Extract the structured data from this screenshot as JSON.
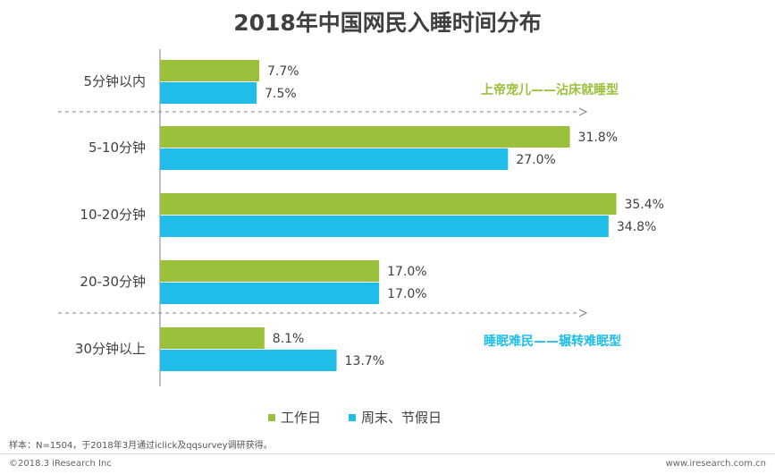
{
  "chart_data": {
    "type": "bar",
    "orientation": "horizontal",
    "title": "2018年中国网民入睡时间分布",
    "categories": [
      "5分钟以内",
      "5-10分钟",
      "10-20分钟",
      "20-30分钟",
      "30分钟以上"
    ],
    "series": [
      {
        "name": "工作日",
        "color": "#9bc13c",
        "values": [
          7.7,
          31.8,
          35.4,
          17.0,
          8.1
        ]
      },
      {
        "name": "周末、节假日",
        "color": "#1fbde8",
        "values": [
          7.5,
          27.0,
          34.8,
          17.0,
          13.7
        ]
      }
    ],
    "value_format": "percent_1dp",
    "xlim": [
      0,
      36
    ],
    "annotations": [
      {
        "text": "上帝宠儿——沾床就睡型",
        "color": "#9bc13c"
      },
      {
        "text": "睡眠难民——辗转难眠型",
        "color": "#1fbde8"
      }
    ],
    "legend_position": "bottom"
  },
  "footnote": "样本：N=1504，于2018年3月通过iclick及qqsurvey调研获得。",
  "copyright": "©2018.3 iResearch Inc",
  "website": "www.iresearch.com.cn"
}
